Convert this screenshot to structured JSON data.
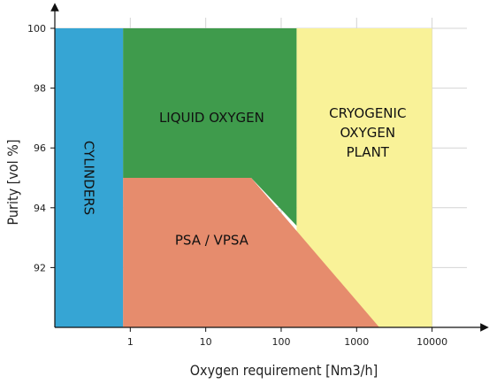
{
  "chart_data": {
    "type": "area",
    "xlabel": "Oxygen requirement [Nm3/h]",
    "ylabel": "Purity [vol %]",
    "x_scale": "log",
    "xlim": [
      0.1,
      40000
    ],
    "ylim": [
      90,
      100
    ],
    "x_ticks": [
      {
        "value": 1,
        "label": "1"
      },
      {
        "value": 10,
        "label": "10"
      },
      {
        "value": 100,
        "label": "100"
      },
      {
        "value": 1000,
        "label": "1000"
      },
      {
        "value": 10000,
        "label": "10000"
      }
    ],
    "y_ticks": [
      {
        "value": 92,
        "label": "92"
      },
      {
        "value": 94,
        "label": "94"
      },
      {
        "value": 96,
        "label": "96"
      },
      {
        "value": 98,
        "label": "98"
      },
      {
        "value": 100,
        "label": "100"
      }
    ],
    "grid": true,
    "regions": [
      {
        "name": "cryogenic",
        "label_lines": [
          "CRYOGENIC",
          "OXYGEN",
          "PLANT"
        ],
        "color": "#f9f298",
        "polygon": [
          [
            160,
            100
          ],
          [
            10000,
            100
          ],
          [
            10000,
            90
          ],
          [
            160,
            90
          ]
        ],
        "label_at": [
          1400,
          96.5
        ],
        "vertical": false
      },
      {
        "name": "liquid-oxygen",
        "label_lines": [
          "LIQUID OXYGEN"
        ],
        "color": "#3f9b4c",
        "polygon": [
          [
            0.8,
            100
          ],
          [
            160,
            100
          ],
          [
            160,
            93.4
          ],
          [
            40,
            95
          ],
          [
            0.8,
            95
          ]
        ],
        "label_at": [
          12,
          97
        ],
        "vertical": false
      },
      {
        "name": "psa-vpsa",
        "label_lines": [
          "PSA / VPSA"
        ],
        "color": "#e68c6d",
        "polygon": [
          [
            0.8,
            95
          ],
          [
            40,
            95
          ],
          [
            2000,
            90
          ],
          [
            0.8,
            90
          ]
        ],
        "label_at": [
          12,
          92.9
        ],
        "vertical": false
      },
      {
        "name": "cylinders",
        "label_lines": [
          "CYLINDERS"
        ],
        "color": "#36a5d4",
        "polygon": [
          [
            0.1,
            100
          ],
          [
            0.8,
            100
          ],
          [
            0.8,
            90
          ],
          [
            0.1,
            90
          ]
        ],
        "label_at": [
          0.28,
          95
        ],
        "vertical": true
      }
    ]
  },
  "colors": {
    "axis": "#111111",
    "grid": "#d4d4d4"
  }
}
